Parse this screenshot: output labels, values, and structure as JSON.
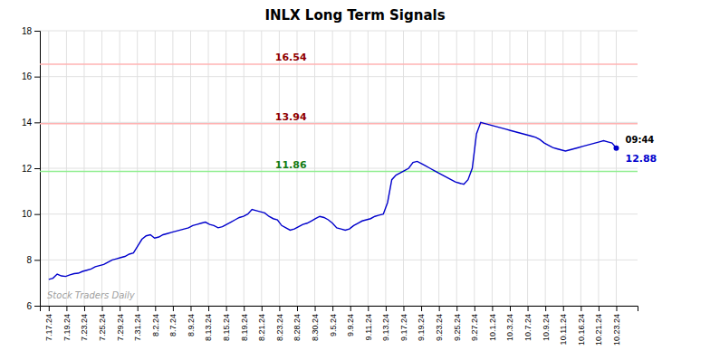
{
  "chart_data": {
    "type": "line",
    "title": "INLX Long Term Signals",
    "color": "#0000cc",
    "grid": true,
    "xlim": [
      -0.5,
      33.2
    ],
    "xticks": [
      {
        "value": 0,
        "label": "7.17.24"
      },
      {
        "value": 1,
        "label": "7.19.24"
      },
      {
        "value": 2,
        "label": "7.23.24"
      },
      {
        "value": 3,
        "label": "7.25.24"
      },
      {
        "value": 4,
        "label": "7.29.24"
      },
      {
        "value": 5,
        "label": "7.31.24"
      },
      {
        "value": 6,
        "label": "8.2.24"
      },
      {
        "value": 7,
        "label": "8.7.24"
      },
      {
        "value": 8,
        "label": "8.9.24"
      },
      {
        "value": 9,
        "label": "8.13.24"
      },
      {
        "value": 10,
        "label": "8.15.24"
      },
      {
        "value": 11,
        "label": "8.19.24"
      },
      {
        "value": 12,
        "label": "8.21.24"
      },
      {
        "value": 13,
        "label": "8.23.24"
      },
      {
        "value": 14,
        "label": "8.28.24"
      },
      {
        "value": 15,
        "label": "8.30.24"
      },
      {
        "value": 16,
        "label": "9.5.24"
      },
      {
        "value": 17,
        "label": "9.9.24"
      },
      {
        "value": 18,
        "label": "9.11.24"
      },
      {
        "value": 19,
        "label": "9.13.24"
      },
      {
        "value": 20,
        "label": "9.17.24"
      },
      {
        "value": 21,
        "label": "9.19.24"
      },
      {
        "value": 22,
        "label": "9.23.24"
      },
      {
        "value": 23,
        "label": "9.25.24"
      },
      {
        "value": 24,
        "label": "9.27.24"
      },
      {
        "value": 25,
        "label": "10.1.24"
      },
      {
        "value": 26,
        "label": "10.3.24"
      },
      {
        "value": 27,
        "label": "10.7.24"
      },
      {
        "value": 28,
        "label": "10.9.24"
      },
      {
        "value": 29,
        "label": "10.11.24"
      },
      {
        "value": 30,
        "label": "10.16.24"
      },
      {
        "value": 31,
        "label": "10.21.24"
      },
      {
        "value": 32,
        "label": "10.23.24"
      }
    ],
    "ylim": [
      6,
      18
    ],
    "yticks": [
      6,
      8,
      10,
      12,
      14,
      16,
      18
    ],
    "values": [
      7.15,
      7.2,
      7.38,
      7.3,
      7.28,
      7.35,
      7.4,
      7.42,
      7.5,
      7.55,
      7.6,
      7.7,
      7.75,
      7.8,
      7.9,
      8.0,
      8.05,
      8.1,
      8.15,
      8.25,
      8.3,
      8.6,
      8.9,
      9.05,
      9.1,
      8.95,
      9.0,
      9.1,
      9.15,
      9.2,
      9.25,
      9.3,
      9.35,
      9.4,
      9.5,
      9.55,
      9.6,
      9.65,
      9.55,
      9.5,
      9.4,
      9.45,
      9.55,
      9.65,
      9.75,
      9.85,
      9.9,
      10.0,
      10.2,
      10.15,
      10.1,
      10.05,
      9.9,
      9.8,
      9.75,
      9.5,
      9.4,
      9.3,
      9.35,
      9.45,
      9.55,
      9.6,
      9.7,
      9.8,
      9.9,
      9.85,
      9.75,
      9.6,
      9.4,
      9.35,
      9.3,
      9.35,
      9.5,
      9.6,
      9.7,
      9.75,
      9.8,
      9.9,
      9.95,
      10.0,
      10.5,
      11.5,
      11.7,
      11.8,
      11.9,
      12.0,
      12.25,
      12.3,
      12.2,
      12.1,
      12.0,
      11.9,
      11.8,
      11.7,
      11.6,
      11.5,
      11.4,
      11.35,
      11.3,
      11.5,
      12.0,
      13.5,
      14.0,
      13.95,
      13.9,
      13.85,
      13.8,
      13.75,
      13.7,
      13.65,
      13.6,
      13.55,
      13.5,
      13.45,
      13.4,
      13.35,
      13.25,
      13.1,
      13.0,
      12.9,
      12.85,
      12.8,
      12.75,
      12.8,
      12.85,
      12.9,
      12.95,
      13.0,
      13.05,
      13.1,
      13.15,
      13.2,
      13.15,
      13.1,
      12.88
    ],
    "hlines": [
      {
        "value": 16.54,
        "label": "16.54",
        "color": "#ffb3b3"
      },
      {
        "value": 13.94,
        "label": "13.94",
        "color": "#ffb3b3"
      },
      {
        "value": 11.86,
        "label": "11.86",
        "color": "#90ee90"
      }
    ],
    "annotations": [
      {
        "text": "09:44"
      },
      {
        "text": "12.88"
      },
      {
        "text": "Stock Traders Daily"
      }
    ]
  }
}
